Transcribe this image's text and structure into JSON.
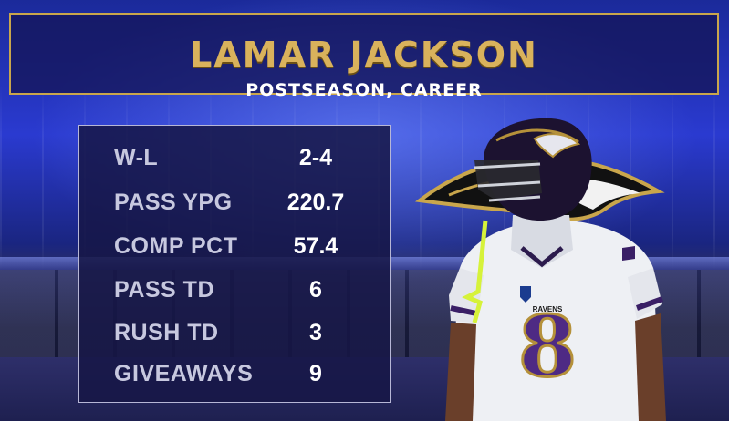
{
  "header": {
    "player_name": "LAMAR JACKSON",
    "subtitle": "POSTSEASON, CAREER"
  },
  "stats": [
    {
      "label": "W-L",
      "value": "2-4"
    },
    {
      "label": "PASS YPG",
      "value": "220.7"
    },
    {
      "label": "COMP PCT",
      "value": "57.4"
    },
    {
      "label": "PASS TD",
      "value": "6"
    },
    {
      "label": "RUSH TD",
      "value": "3"
    },
    {
      "label": "GIVEAWAYS",
      "value": "9"
    }
  ],
  "jersey": {
    "brand": "RAVENS",
    "number": "8"
  },
  "colors": {
    "gold": "#d9b25c",
    "purple": "#4e2a84",
    "panel": "#16164a",
    "label_text": "#c7c8df"
  },
  "icons": [
    "ravens-logo-icon",
    "helmet-icon"
  ]
}
